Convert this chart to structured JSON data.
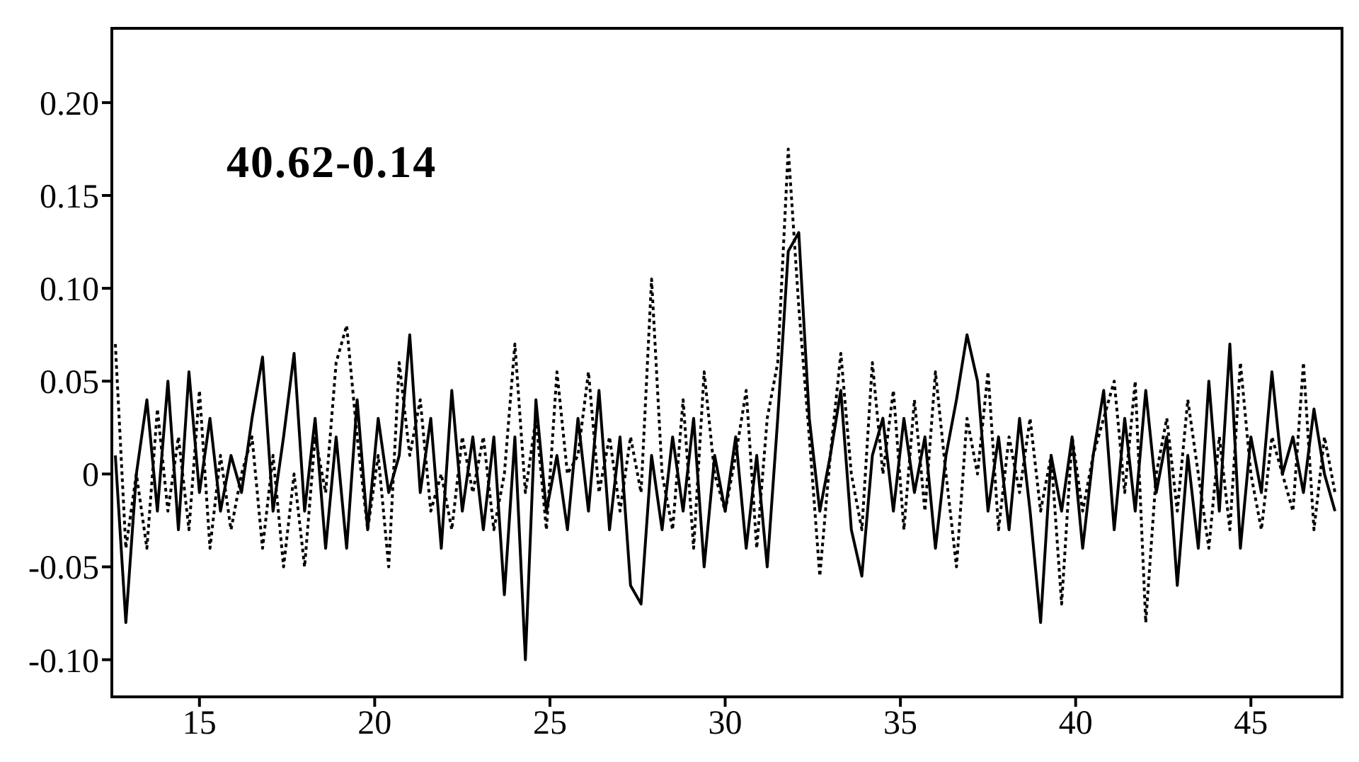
{
  "chart_data": {
    "type": "line",
    "annotations": [
      "40.62-0.14"
    ],
    "x": [
      12.6,
      12.9,
      13.2,
      13.5,
      13.8,
      14.1,
      14.4,
      14.7,
      15.0,
      15.3,
      15.6,
      15.9,
      16.2,
      16.5,
      16.8,
      17.1,
      17.4,
      17.7,
      18.0,
      18.3,
      18.6,
      18.9,
      19.2,
      19.5,
      19.8,
      20.1,
      20.4,
      20.7,
      21.0,
      21.3,
      21.6,
      21.9,
      22.2,
      22.5,
      22.8,
      23.1,
      23.4,
      23.7,
      24.0,
      24.3,
      24.6,
      24.9,
      25.2,
      25.5,
      25.8,
      26.1,
      26.4,
      26.7,
      27.0,
      27.3,
      27.6,
      27.9,
      28.2,
      28.5,
      28.8,
      29.1,
      29.4,
      29.7,
      30.0,
      30.3,
      30.6,
      30.9,
      31.2,
      31.5,
      31.8,
      32.1,
      32.4,
      32.7,
      33.0,
      33.3,
      33.6,
      33.9,
      34.2,
      34.5,
      34.8,
      35.1,
      35.4,
      35.7,
      36.0,
      36.3,
      36.6,
      36.9,
      37.2,
      37.5,
      37.8,
      38.1,
      38.4,
      38.7,
      39.0,
      39.3,
      39.6,
      39.9,
      40.2,
      40.5,
      40.8,
      41.1,
      41.4,
      41.7,
      42.0,
      42.3,
      42.6,
      42.9,
      43.2,
      43.5,
      43.8,
      44.1,
      44.4,
      44.7,
      45.0,
      45.3,
      45.6,
      45.9,
      46.2,
      46.5,
      46.8,
      47.1,
      47.4
    ],
    "series": [
      {
        "color": "#000000",
        "line_style": "solid",
        "values": [
          0.01,
          -0.08,
          0.0,
          0.04,
          -0.02,
          0.05,
          -0.03,
          0.055,
          -0.01,
          0.03,
          -0.02,
          0.01,
          -0.01,
          0.03,
          0.063,
          -0.02,
          0.02,
          0.065,
          -0.02,
          0.03,
          -0.04,
          0.02,
          -0.04,
          0.04,
          -0.03,
          0.03,
          -0.01,
          0.01,
          0.075,
          -0.01,
          0.03,
          -0.04,
          0.045,
          -0.02,
          0.02,
          -0.03,
          0.02,
          -0.065,
          0.02,
          -0.1,
          0.04,
          -0.02,
          0.01,
          -0.03,
          0.03,
          -0.02,
          0.045,
          -0.03,
          0.02,
          -0.06,
          -0.07,
          0.01,
          -0.03,
          0.02,
          -0.02,
          0.03,
          -0.05,
          0.01,
          -0.02,
          0.02,
          -0.04,
          0.01,
          -0.05,
          0.03,
          0.12,
          0.13,
          0.03,
          -0.02,
          0.01,
          0.045,
          -0.03,
          -0.055,
          0.01,
          0.03,
          -0.02,
          0.03,
          -0.01,
          0.02,
          -0.04,
          0.01,
          0.04,
          0.075,
          0.05,
          -0.02,
          0.02,
          -0.03,
          0.03,
          -0.02,
          -0.08,
          0.01,
          -0.02,
          0.02,
          -0.04,
          0.01,
          0.045,
          -0.03,
          0.03,
          -0.02,
          0.045,
          -0.01,
          0.02,
          -0.06,
          0.01,
          -0.04,
          0.05,
          -0.02,
          0.07,
          -0.04,
          0.02,
          -0.01,
          0.055,
          0.0,
          0.02,
          -0.01,
          0.035,
          0.0,
          -0.02
        ]
      },
      {
        "color": "#000000",
        "line_style": "dotted",
        "values": [
          0.07,
          -0.04,
          0.0,
          -0.04,
          0.035,
          -0.02,
          0.02,
          -0.03,
          0.045,
          -0.04,
          0.01,
          -0.03,
          0.0,
          0.02,
          -0.04,
          0.01,
          -0.05,
          0.0,
          -0.05,
          0.02,
          -0.01,
          0.06,
          0.08,
          0.02,
          -0.03,
          0.01,
          -0.05,
          0.06,
          0.01,
          0.04,
          -0.02,
          0.0,
          -0.03,
          0.02,
          -0.01,
          0.02,
          -0.03,
          0.0,
          0.07,
          -0.01,
          0.03,
          -0.03,
          0.055,
          0.0,
          0.01,
          0.055,
          -0.01,
          0.02,
          -0.02,
          0.02,
          -0.01,
          0.105,
          0.0,
          -0.03,
          0.04,
          -0.04,
          0.055,
          0.0,
          -0.02,
          0.01,
          0.045,
          -0.04,
          0.03,
          0.06,
          0.175,
          0.09,
          0.02,
          -0.055,
          0.01,
          0.065,
          0.0,
          -0.03,
          0.06,
          0.0,
          0.045,
          -0.03,
          0.04,
          -0.02,
          0.055,
          0.0,
          -0.05,
          0.03,
          0.0,
          0.055,
          -0.03,
          0.02,
          -0.01,
          0.03,
          -0.02,
          0.01,
          -0.07,
          0.02,
          -0.02,
          0.01,
          0.03,
          0.05,
          -0.01,
          0.05,
          -0.08,
          0.0,
          0.03,
          -0.02,
          0.04,
          0.0,
          -0.04,
          0.02,
          -0.03,
          0.06,
          0.0,
          -0.03,
          0.02,
          0.0,
          -0.02,
          0.06,
          -0.03,
          0.02,
          -0.01
        ]
      }
    ],
    "xlim": [
      12.5,
      47.6
    ],
    "xticks": [
      15,
      20,
      25,
      30,
      35,
      40,
      45
    ],
    "ylim": [
      -0.12,
      0.24
    ],
    "yticks": [
      {
        "value": -0.1,
        "label": "-0.10"
      },
      -0.05,
      0,
      0.05,
      {
        "value": 0.1,
        "label": "0.10"
      },
      0.15,
      {
        "value": 0.2,
        "label": "0.20"
      }
    ],
    "grid": false,
    "legend": false
  }
}
